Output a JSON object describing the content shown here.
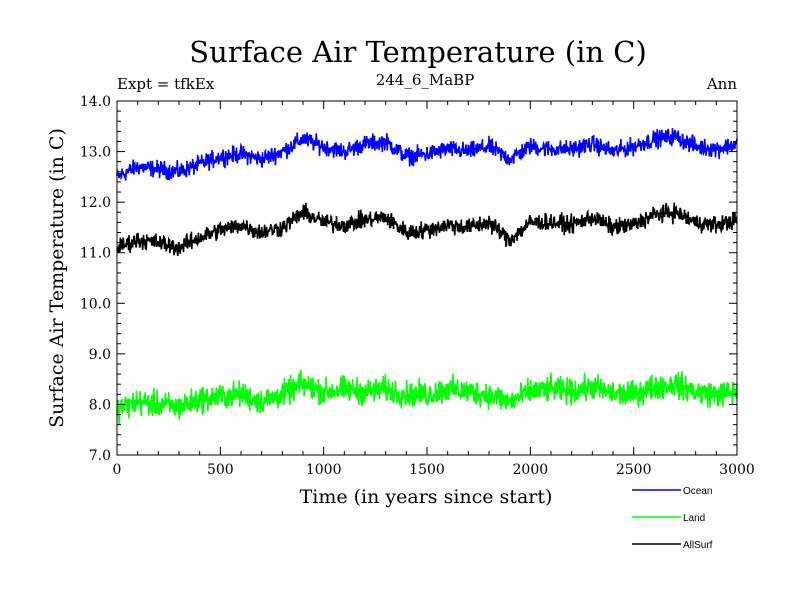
{
  "chart_data": {
    "type": "line",
    "title": "Surface Air Temperature (in C)",
    "subtitle_left": "Expt = tfkEx",
    "subtitle_center": "244_6_MaBP",
    "subtitle_right": "Ann",
    "xlabel": "Time (in years since start)",
    "ylabel": "Surface Air Temperature (in C)",
    "xlim": [
      0,
      3000
    ],
    "ylim": [
      7.0,
      14.0
    ],
    "x_ticks": [
      0,
      500,
      1000,
      1500,
      2000,
      2500,
      3000
    ],
    "y_ticks": [
      "7.0",
      "8.0",
      "9.0",
      "10.0",
      "11.0",
      "12.0",
      "13.0",
      "14.0"
    ],
    "grid": false,
    "legend_position": "bottom-right",
    "x": [
      0,
      100,
      200,
      300,
      400,
      500,
      600,
      700,
      800,
      900,
      1000,
      1100,
      1200,
      1300,
      1400,
      1500,
      1600,
      1700,
      1800,
      1900,
      2000,
      2100,
      2200,
      2300,
      2400,
      2500,
      2600,
      2700,
      2800,
      2900,
      3000
    ],
    "series": [
      {
        "name": "Ocean",
        "color": "#0000ff",
        "values": [
          12.5,
          12.7,
          12.65,
          12.6,
          12.75,
          12.9,
          12.95,
          12.85,
          13.0,
          13.25,
          13.1,
          13.0,
          13.15,
          13.2,
          12.9,
          12.95,
          13.05,
          13.0,
          13.1,
          12.85,
          13.1,
          13.05,
          13.05,
          13.15,
          13.0,
          13.1,
          13.25,
          13.3,
          13.1,
          13.05,
          13.15
        ],
        "noise": 0.12
      },
      {
        "name": "Land",
        "color": "#00ff00",
        "values": [
          7.9,
          8.05,
          8.0,
          7.95,
          8.1,
          8.15,
          8.2,
          8.05,
          8.2,
          8.4,
          8.25,
          8.3,
          8.25,
          8.3,
          8.2,
          8.2,
          8.3,
          8.25,
          8.2,
          8.05,
          8.25,
          8.3,
          8.25,
          8.35,
          8.2,
          8.2,
          8.35,
          8.4,
          8.25,
          8.2,
          8.25
        ],
        "noise": 0.18
      },
      {
        "name": "AllSurf",
        "color": "#000000",
        "values": [
          11.1,
          11.25,
          11.2,
          11.1,
          11.3,
          11.45,
          11.55,
          11.4,
          11.5,
          11.8,
          11.6,
          11.55,
          11.65,
          11.7,
          11.4,
          11.45,
          11.55,
          11.5,
          11.6,
          11.25,
          11.6,
          11.6,
          11.55,
          11.7,
          11.5,
          11.55,
          11.75,
          11.8,
          11.6,
          11.55,
          11.65
        ],
        "noise": 0.12
      }
    ]
  }
}
